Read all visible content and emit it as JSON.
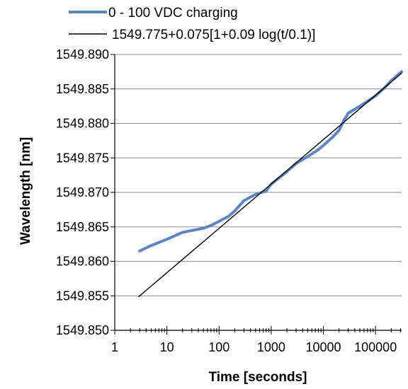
{
  "chart_data": {
    "type": "line",
    "xlabel": "Time [seconds]",
    "ylabel": "Wavelength [nm]",
    "x_scale": "log",
    "xlim": [
      1,
      316228
    ],
    "ylim": [
      1549.85,
      1549.89
    ],
    "x_ticks": [
      1,
      10,
      100,
      1000,
      10000,
      100000
    ],
    "x_tick_labels": [
      "1",
      "10",
      "100",
      "1000",
      "10000",
      "100000"
    ],
    "y_ticks": [
      1549.85,
      1549.855,
      1549.86,
      1549.865,
      1549.87,
      1549.875,
      1549.88,
      1549.885,
      1549.89
    ],
    "y_tick_labels": [
      "1549.850",
      "1549.855",
      "1549.860",
      "1549.865",
      "1549.870",
      "1549.875",
      "1549.880",
      "1549.885",
      "1549.890"
    ],
    "grid": "horizontal",
    "legend_position": "top",
    "series": [
      {
        "name": "0 - 100 VDC charging",
        "color": "#5b86c3",
        "x": [
          3,
          5,
          10,
          20,
          50,
          70,
          100,
          150,
          200,
          300,
          500,
          800,
          1000,
          2000,
          3000,
          5000,
          8000,
          10000,
          15000,
          20000,
          25000,
          30000,
          50000,
          80000,
          100000,
          150000,
          200000,
          316000
        ],
        "y": [
          1549.8615,
          1549.8623,
          1549.8632,
          1549.8642,
          1549.8648,
          1549.8652,
          1549.8658,
          1549.8665,
          1549.8673,
          1549.8688,
          1549.8697,
          1549.8702,
          1549.8712,
          1549.873,
          1549.8742,
          1549.8752,
          1549.8762,
          1549.8768,
          1549.878,
          1549.879,
          1549.8805,
          1549.8815,
          1549.8825,
          1549.8835,
          1549.884,
          1549.8852,
          1549.8862,
          1549.8875
        ]
      },
      {
        "name": "1549.775+0.075[1+0.09 log(t/0.1)]",
        "color": "#000000",
        "x": [
          2.9,
          316000
        ],
        "y": [
          1549.85489,
          1549.8873
        ]
      }
    ]
  }
}
